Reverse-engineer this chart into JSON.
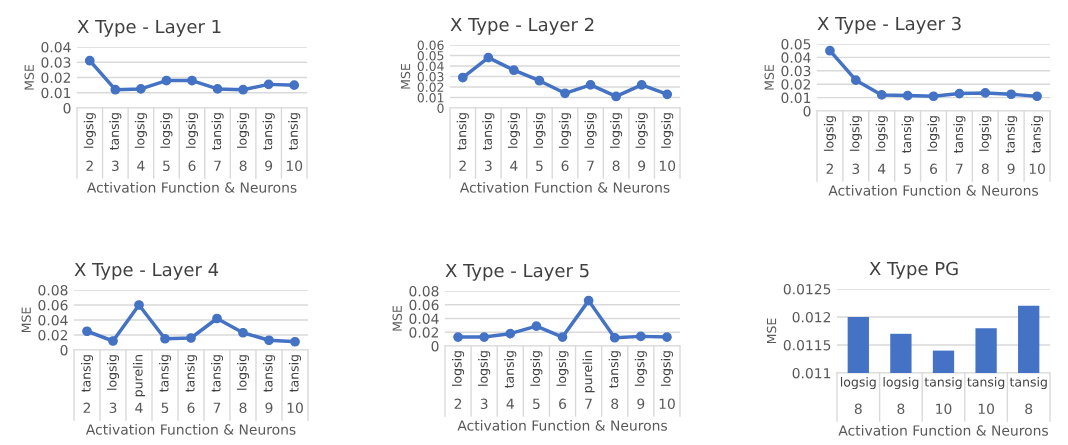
{
  "chart_data": [
    {
      "type": "line",
      "title": "X Type - Layer 1",
      "xlabel": "Activation Function & Neurons",
      "ylabel": "MSE",
      "categories": [
        "logsig\n2",
        "tansig\n3",
        "logsig\n4",
        "logsig\n5",
        "logsig\n6",
        "tansig\n7",
        "logsig\n8",
        "tansig\n9",
        "tansig\n10"
      ],
      "series": [
        {
          "color": "#4472c4",
          "values": [
            0.031,
            0.012,
            0.0125,
            0.018,
            0.018,
            0.0125,
            0.012,
            0.0155,
            0.015
          ]
        }
      ],
      "ylim": [
        0,
        0.04
      ],
      "yticks": [
        0,
        0.01,
        0.02,
        0.03,
        0.04
      ],
      "grid": "y",
      "marker": "circle"
    },
    {
      "type": "line",
      "title": "X Type - Layer 2",
      "xlabel": "Activation Function & Neurons",
      "ylabel": "MSE",
      "categories": [
        "tansig\n2",
        "tansig\n3",
        "logsig\n4",
        "logsig\n5",
        "logsig\n6",
        "logsig\n7",
        "logsig\n8",
        "logsig\n9",
        "logsig\n10"
      ],
      "series": [
        {
          "color": "#4472c4",
          "values": [
            0.029,
            0.048,
            0.036,
            0.026,
            0.014,
            0.022,
            0.011,
            0.022,
            0.013
          ]
        }
      ],
      "ylim": [
        0,
        0.06
      ],
      "yticks": [
        0,
        0.01,
        0.02,
        0.03,
        0.04,
        0.05,
        0.06
      ],
      "grid": "y",
      "marker": "circle"
    },
    {
      "type": "line",
      "title": "X Type - Layer 3",
      "xlabel": "Activation Function & Neurons",
      "ylabel": "MSE",
      "categories": [
        "logsig\n2",
        "logsig\n3",
        "logsig\n4",
        "tansig\n5",
        "logsig\n6",
        "tansig\n7",
        "logsig\n8",
        "tansig\n9",
        "tansig\n10"
      ],
      "series": [
        {
          "color": "#4472c4",
          "values": [
            0.045,
            0.023,
            0.012,
            0.0115,
            0.011,
            0.013,
            0.0135,
            0.0125,
            0.011
          ]
        }
      ],
      "ylim": [
        0,
        0.05
      ],
      "yticks": [
        0,
        0.01,
        0.02,
        0.03,
        0.04,
        0.05
      ],
      "grid": "y",
      "marker": "circle"
    },
    {
      "type": "line",
      "title": "X Type - Layer 4",
      "xlabel": "Activation Function & Neurons",
      "ylabel": "MSE",
      "categories": [
        "tansig\n2",
        "logsig\n3",
        "purelin\n4",
        "tansig\n5",
        "tansig\n6",
        "tansig\n7",
        "logsig\n8",
        "tansig\n9",
        "tansig\n10"
      ],
      "series": [
        {
          "color": "#4472c4",
          "values": [
            0.025,
            0.012,
            0.06,
            0.015,
            0.016,
            0.042,
            0.023,
            0.013,
            0.011
          ]
        }
      ],
      "ylim": [
        0,
        0.08
      ],
      "yticks": [
        0,
        0.02,
        0.04,
        0.06,
        0.08
      ],
      "grid": "y",
      "marker": "circle"
    },
    {
      "type": "line",
      "title": "X Type - Layer 5",
      "xlabel": "Activation Function & Neurons",
      "ylabel": "MSE",
      "categories": [
        "logsig\n2",
        "logsig\n3",
        "tansig\n4",
        "logsig\n5",
        "logsig\n6",
        "purelin\n7",
        "tansig\n8",
        "logsig\n9",
        "logsig\n10"
      ],
      "series": [
        {
          "color": "#4472c4",
          "values": [
            0.013,
            0.013,
            0.018,
            0.029,
            0.013,
            0.066,
            0.012,
            0.014,
            0.013
          ]
        }
      ],
      "ylim": [
        0,
        0.08
      ],
      "yticks": [
        0,
        0.02,
        0.04,
        0.06,
        0.08
      ],
      "grid": "y",
      "marker": "circle"
    },
    {
      "type": "bar",
      "title": "X Type PG",
      "xlabel": "Activation Function & Neurons",
      "ylabel": "MSE",
      "categories": [
        "logsig\n8",
        "logsig\n8",
        "tansig\n10",
        "tansig\n10",
        "tansig\n8"
      ],
      "series": [
        {
          "color": "#4472c4",
          "values": [
            0.012,
            0.0117,
            0.0114,
            0.0118,
            0.0122
          ]
        }
      ],
      "ylim": [
        0.011,
        0.0125
      ],
      "yticks": [
        0.011,
        0.0115,
        0.012,
        0.0125
      ],
      "grid": "y"
    }
  ]
}
